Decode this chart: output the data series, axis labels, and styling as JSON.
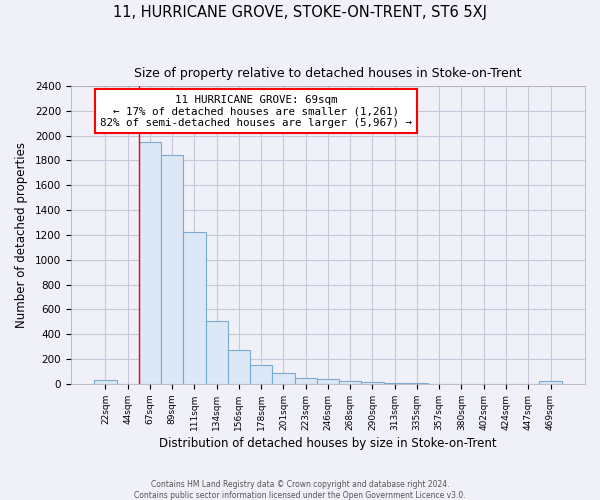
{
  "title": "11, HURRICANE GROVE, STOKE-ON-TRENT, ST6 5XJ",
  "subtitle": "Size of property relative to detached houses in Stoke-on-Trent",
  "xlabel": "Distribution of detached houses by size in Stoke-on-Trent",
  "ylabel": "Number of detached properties",
  "categories": [
    "22sqm",
    "44sqm",
    "67sqm",
    "89sqm",
    "111sqm",
    "134sqm",
    "156sqm",
    "178sqm",
    "201sqm",
    "223sqm",
    "246sqm",
    "268sqm",
    "290sqm",
    "313sqm",
    "335sqm",
    "357sqm",
    "380sqm",
    "402sqm",
    "424sqm",
    "447sqm",
    "469sqm"
  ],
  "values": [
    30,
    0,
    1950,
    1840,
    1220,
    510,
    275,
    155,
    85,
    50,
    42,
    20,
    15,
    10,
    5,
    3,
    2,
    1,
    0,
    0,
    20
  ],
  "bar_color": "#dce8f5",
  "bar_edge_color": "#7aaad0",
  "red_line_bar_index": 2,
  "annotation_title": "11 HURRICANE GROVE: 69sqm",
  "annotation_line1": "← 17% of detached houses are smaller (1,261)",
  "annotation_line2": "82% of semi-detached houses are larger (5,967) →",
  "annotation_box_color": "white",
  "annotation_box_edge": "red",
  "ylim": [
    0,
    2400
  ],
  "yticks": [
    0,
    200,
    400,
    600,
    800,
    1000,
    1200,
    1400,
    1600,
    1800,
    2000,
    2200,
    2400
  ],
  "footer1": "Contains HM Land Registry data © Crown copyright and database right 2024.",
  "footer2": "Contains public sector information licensed under the Open Government Licence v3.0.",
  "bg_color": "#f0f0f8",
  "grid_color": "#c8c8dc"
}
